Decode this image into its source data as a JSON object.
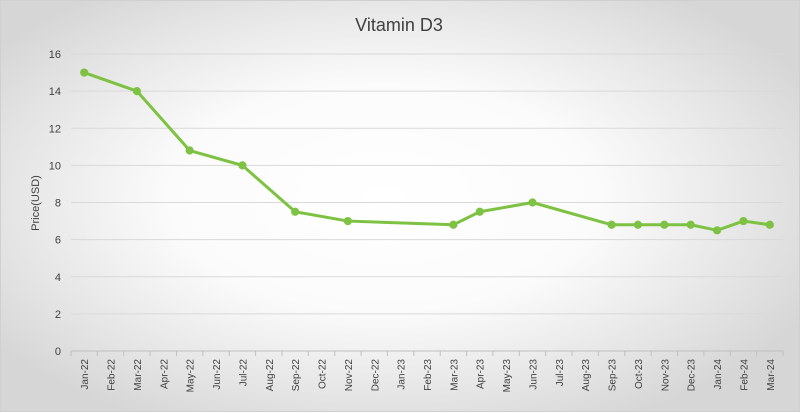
{
  "chart_data": {
    "type": "line",
    "title": "Vitamin D3",
    "xlabel": "",
    "ylabel": "Price(USD)",
    "ylim": [
      0,
      16
    ],
    "yticks": [
      0,
      2,
      4,
      6,
      8,
      10,
      12,
      14,
      16
    ],
    "grid": true,
    "line_color": "#7DC243",
    "categories": [
      "Jan-22",
      "Feb-22",
      "Mar-22",
      "Apr-22",
      "May-22",
      "Jun-22",
      "Jul-22",
      "Aug-22",
      "Sep-22",
      "Oct-22",
      "Nov-22",
      "Dec-22",
      "Jan-23",
      "Feb-23",
      "Mar-23",
      "Apr-23",
      "May-23",
      "Jun-23",
      "Jul-23",
      "Aug-23",
      "Sep-23",
      "Oct-23",
      "Nov-23",
      "Dec-23",
      "Jan-24",
      "Feb-24",
      "Mar-24"
    ],
    "points": [
      {
        "x": "Jan-22",
        "y": 15.0
      },
      {
        "x": "Mar-22",
        "y": 14.0
      },
      {
        "x": "May-22",
        "y": 10.8
      },
      {
        "x": "Jul-22",
        "y": 10.0
      },
      {
        "x": "Sep-22",
        "y": 7.5
      },
      {
        "x": "Nov-22",
        "y": 7.0
      },
      {
        "x": "Mar-23",
        "y": 6.8
      },
      {
        "x": "Apr-23",
        "y": 7.5
      },
      {
        "x": "Jun-23",
        "y": 8.0
      },
      {
        "x": "Sep-23",
        "y": 6.8
      },
      {
        "x": "Oct-23",
        "y": 6.8
      },
      {
        "x": "Nov-23",
        "y": 6.8
      },
      {
        "x": "Dec-23",
        "y": 6.8
      },
      {
        "x": "Jan-24",
        "y": 6.5
      },
      {
        "x": "Feb-24",
        "y": 7.0
      },
      {
        "x": "Mar-24",
        "y": 6.8
      }
    ]
  }
}
